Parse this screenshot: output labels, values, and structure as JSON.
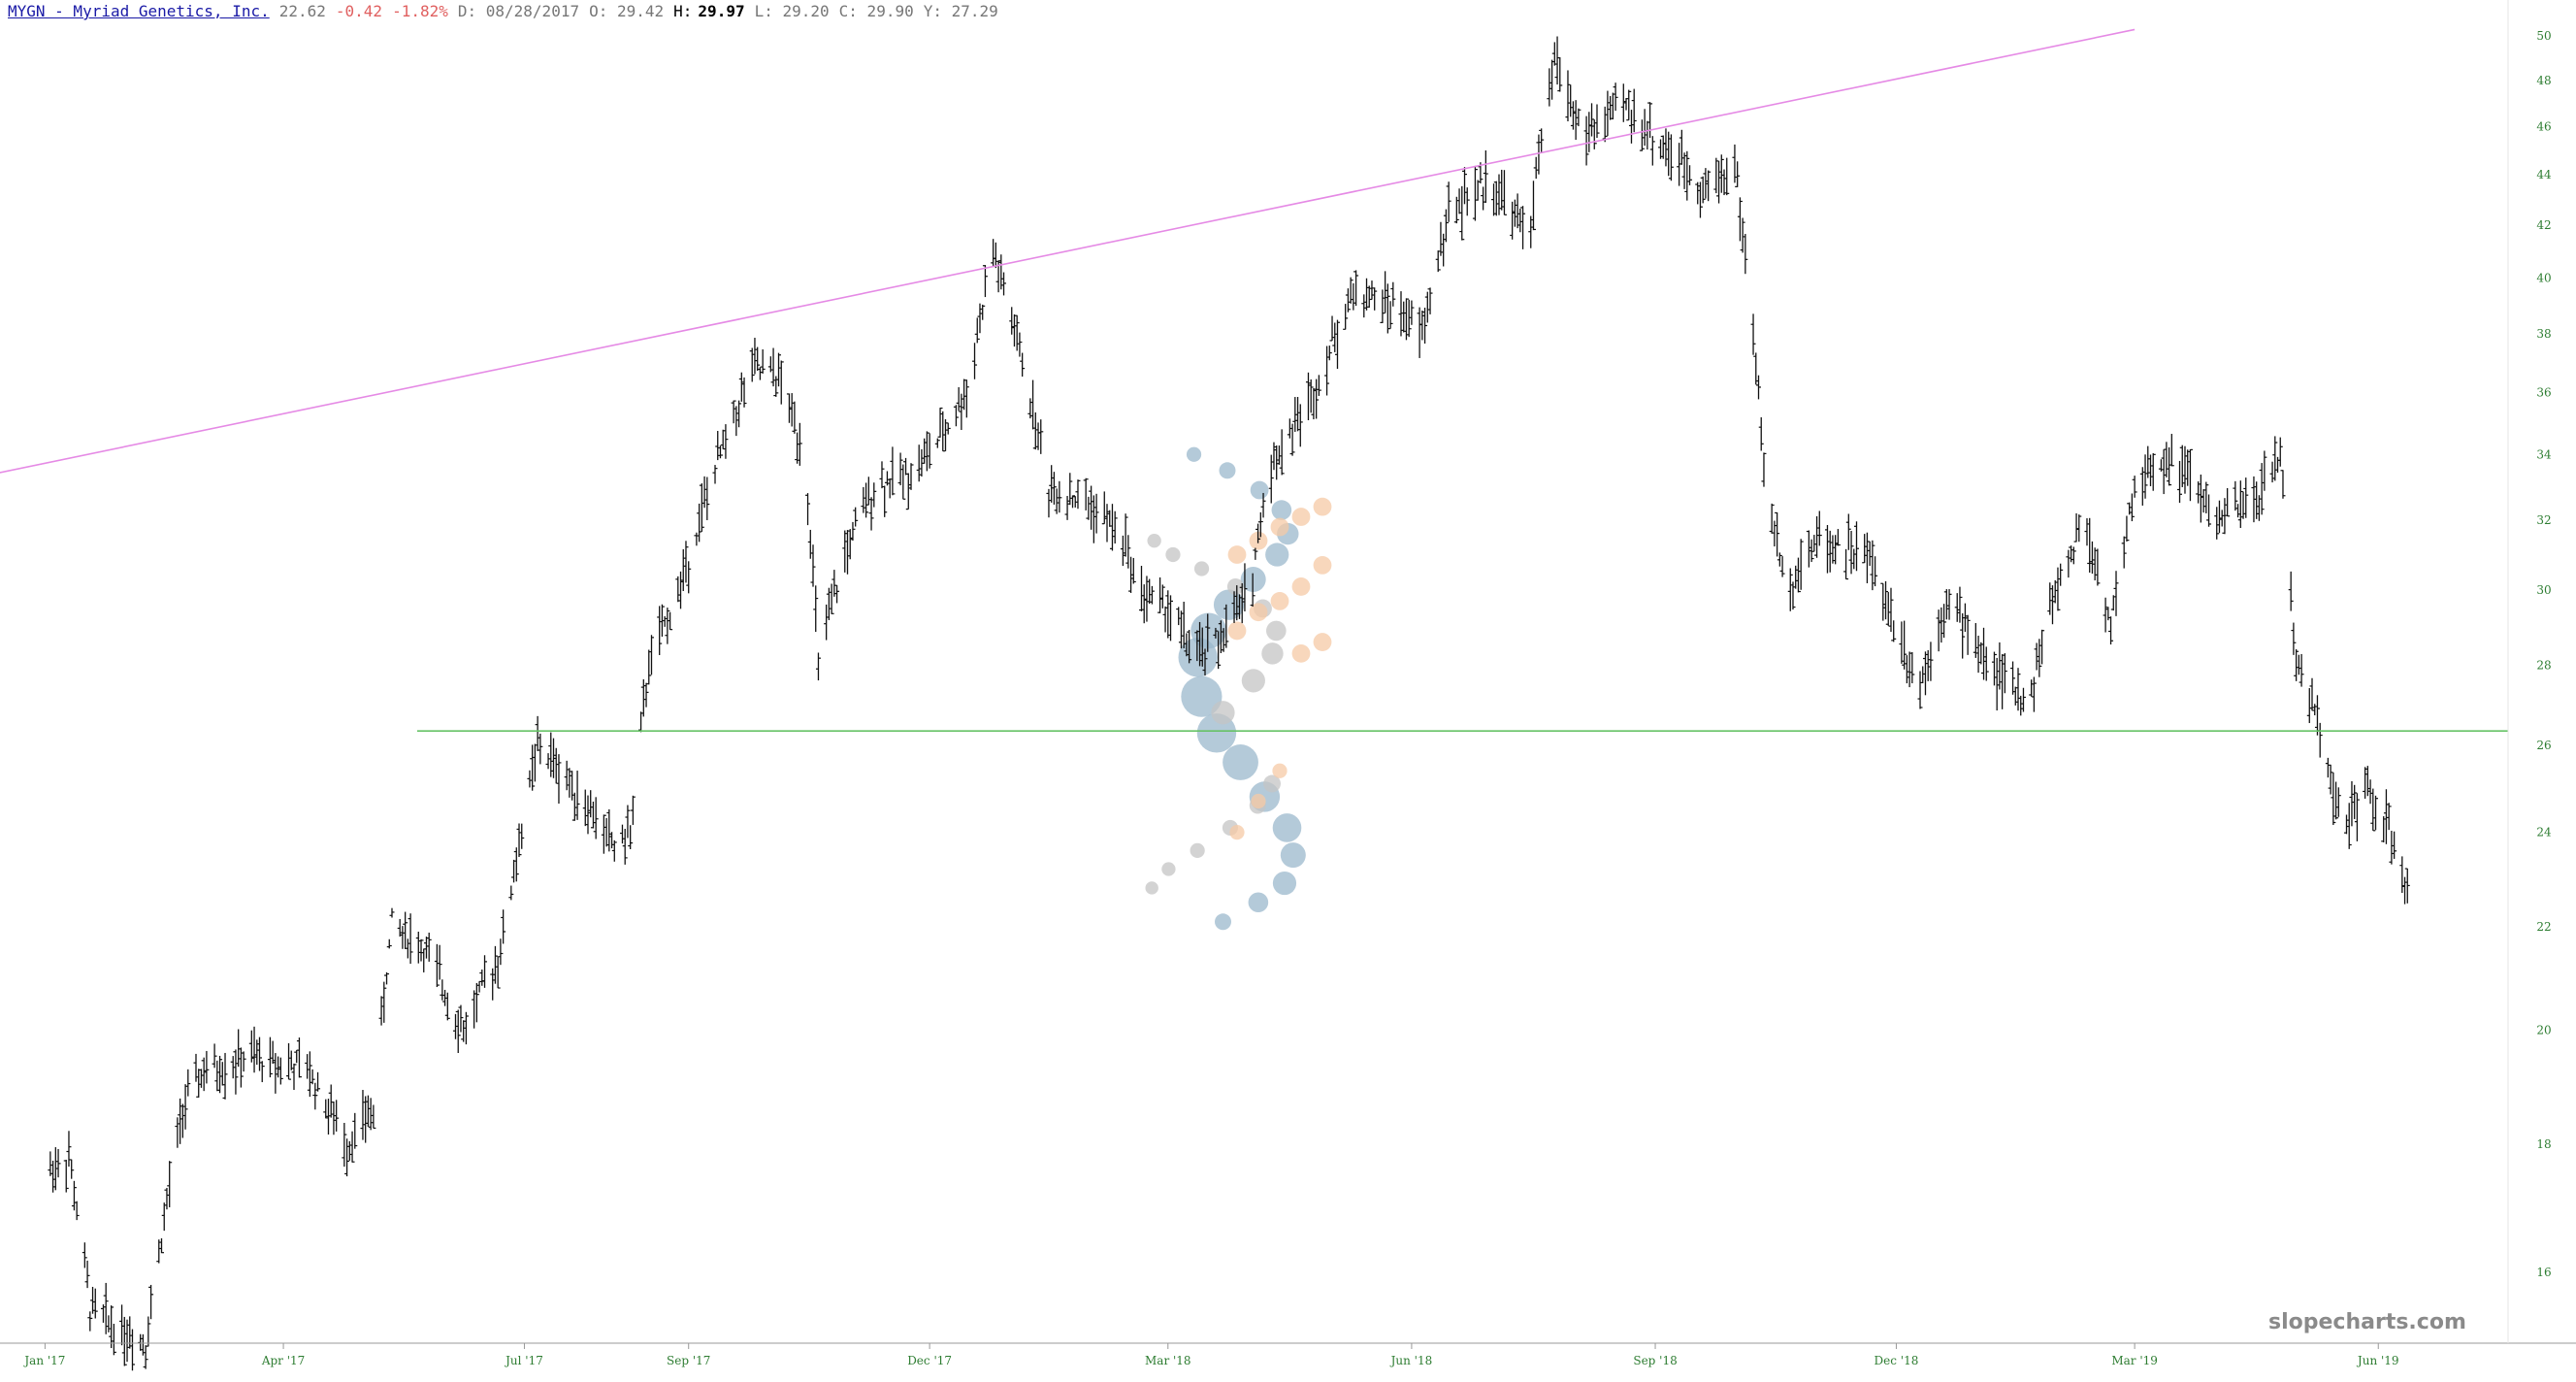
{
  "header": {
    "symbol": "MYGN - Myriad Genetics, Inc.",
    "last": "22.62",
    "change": "-0.42",
    "change_pct": "-1.82%",
    "date": "D: 08/28/2017",
    "open": "O: 29.42",
    "high_label": "H:",
    "high_value": "29.97",
    "low": "L: 29.20",
    "close": "C: 29.90",
    "prev": "Y: 27.29"
  },
  "watermark": "slopecharts.com",
  "colors": {
    "bars": "#111111",
    "trendline": "#e58ae5",
    "support": "#66c266",
    "axis_text": "#2e7d32",
    "bubble_blue": "#9bb8cc",
    "bubble_orange": "#f5c9a6",
    "bubble_gray": "#c4c4c4"
  },
  "chart_data": {
    "type": "ohlc",
    "y_scale": "log",
    "ylim": [
      15,
      51
    ],
    "ytick_labels": [
      "16",
      "18",
      "20",
      "22",
      "24",
      "26",
      "28",
      "30",
      "32",
      "34",
      "36",
      "38",
      "40",
      "42",
      "44",
      "46",
      "48",
      "50"
    ],
    "ytick_values": [
      16,
      18,
      20,
      22,
      24,
      26,
      28,
      30,
      32,
      34,
      36,
      38,
      40,
      42,
      44,
      46,
      48,
      50
    ],
    "xtick_labels": [
      "Jan '17",
      "Apr '17",
      "Jul '17",
      "Sep '17",
      "Dec '17",
      "Mar '18",
      "Jun '18",
      "Sep '18",
      "Dec '18",
      "Mar '19",
      "Jun '19"
    ],
    "trendline": {
      "from": [
        "2016-12",
        33.2
      ],
      "to": [
        "2019-03",
        50.3
      ]
    },
    "support_level": 26.35,
    "price_path": [
      [
        "2017-01-03",
        17.6
      ],
      [
        "2017-01-10",
        17.8
      ],
      [
        "2017-01-18",
        15.5
      ],
      [
        "2017-01-28",
        15.2
      ],
      [
        "2017-02-08",
        15.0
      ],
      [
        "2017-02-15",
        16.8
      ],
      [
        "2017-02-22",
        18.6
      ],
      [
        "2017-03-01",
        19.2
      ],
      [
        "2017-03-20",
        19.5
      ],
      [
        "2017-04-10",
        19.3
      ],
      [
        "2017-04-25",
        18.0
      ],
      [
        "2017-05-05",
        18.6
      ],
      [
        "2017-05-12",
        22.1
      ],
      [
        "2017-05-25",
        21.5
      ],
      [
        "2017-06-08",
        20.0
      ],
      [
        "2017-06-22",
        21.5
      ],
      [
        "2017-07-06",
        26.0
      ],
      [
        "2017-07-15",
        25.4
      ],
      [
        "2017-07-28",
        24.3
      ],
      [
        "2017-08-04",
        23.7
      ],
      [
        "2017-08-10",
        24.0
      ],
      [
        "2017-08-17",
        28.0
      ],
      [
        "2017-08-28",
        29.9
      ],
      [
        "2017-09-05",
        32.0
      ],
      [
        "2017-09-15",
        34.5
      ],
      [
        "2017-09-25",
        36.8
      ],
      [
        "2017-10-05",
        36.5
      ],
      [
        "2017-10-15",
        34.0
      ],
      [
        "2017-10-20",
        28.0
      ],
      [
        "2017-10-30",
        31.0
      ],
      [
        "2017-11-10",
        33.0
      ],
      [
        "2017-11-25",
        33.5
      ],
      [
        "2017-12-05",
        34.5
      ],
      [
        "2017-12-15",
        36.0
      ],
      [
        "2017-12-25",
        41.0
      ],
      [
        "2018-01-05",
        37.0
      ],
      [
        "2018-01-15",
        33.0
      ],
      [
        "2018-01-30",
        32.5
      ],
      [
        "2018-02-12",
        31.5
      ],
      [
        "2018-02-18",
        30.0
      ],
      [
        "2018-03-01",
        29.5
      ],
      [
        "2018-03-12",
        28.2
      ],
      [
        "2018-03-22",
        28.8
      ],
      [
        "2018-04-01",
        30.0
      ],
      [
        "2018-04-08",
        33.5
      ],
      [
        "2018-04-25",
        36.0
      ],
      [
        "2018-05-10",
        39.5
      ],
      [
        "2018-05-25",
        39.0
      ],
      [
        "2018-06-05",
        38.0
      ],
      [
        "2018-06-15",
        42.5
      ],
      [
        "2018-07-01",
        43.8
      ],
      [
        "2018-07-15",
        41.5
      ],
      [
        "2018-07-25",
        49.0
      ],
      [
        "2018-08-05",
        45.5
      ],
      [
        "2018-08-20",
        47.0
      ],
      [
        "2018-09-05",
        45.0
      ],
      [
        "2018-09-20",
        43.5
      ],
      [
        "2018-10-01",
        44.5
      ],
      [
        "2018-10-08",
        38.0
      ],
      [
        "2018-10-12",
        33.5
      ],
      [
        "2018-10-20",
        30.0
      ],
      [
        "2018-11-01",
        31.5
      ],
      [
        "2018-11-20",
        31.0
      ],
      [
        "2018-12-01",
        29.0
      ],
      [
        "2018-12-10",
        27.5
      ],
      [
        "2018-12-20",
        29.8
      ],
      [
        "2019-01-05",
        28.0
      ],
      [
        "2019-01-20",
        27.0
      ],
      [
        "2019-01-28",
        29.5
      ],
      [
        "2019-02-10",
        32.0
      ],
      [
        "2019-02-20",
        29.0
      ],
      [
        "2019-03-01",
        33.0
      ],
      [
        "2019-03-15",
        34.0
      ],
      [
        "2019-04-01",
        32.0
      ],
      [
        "2019-04-15",
        32.5
      ],
      [
        "2019-04-25",
        34.0
      ],
      [
        "2019-05-01",
        28.0
      ],
      [
        "2019-05-10",
        26.5
      ],
      [
        "2019-05-18",
        24.0
      ],
      [
        "2019-05-28",
        25.0
      ],
      [
        "2019-06-05",
        24.0
      ],
      [
        "2019-06-12",
        22.6
      ]
    ],
    "volume_profile": [
      {
        "series": "blue",
        "points": [
          [
            22.1,
            0.5
          ],
          [
            22.5,
            0.7
          ],
          [
            22.9,
            0.9
          ],
          [
            23.5,
            1.0
          ],
          [
            24.1,
            1.2
          ],
          [
            24.8,
            1.3
          ],
          [
            25.6,
            1.6
          ],
          [
            26.3,
            1.8
          ],
          [
            27.2,
            1.9
          ],
          [
            28.2,
            1.8
          ],
          [
            28.9,
            1.6
          ],
          [
            29.6,
            1.3
          ],
          [
            30.3,
            1.0
          ],
          [
            31.0,
            0.9
          ],
          [
            31.6,
            0.8
          ],
          [
            32.3,
            0.7
          ],
          [
            32.9,
            0.6
          ],
          [
            33.5,
            0.5
          ],
          [
            34.0,
            0.4
          ]
        ]
      },
      {
        "series": "gray",
        "points": [
          [
            26.8,
            0.9
          ],
          [
            27.6,
            0.9
          ],
          [
            28.3,
            0.8
          ],
          [
            28.9,
            0.7
          ],
          [
            29.5,
            0.6
          ],
          [
            30.1,
            0.5
          ],
          [
            30.6,
            0.4
          ],
          [
            31.0,
            0.4
          ],
          [
            31.4,
            0.35
          ],
          [
            22.8,
            0.3
          ],
          [
            23.2,
            0.35
          ],
          [
            23.6,
            0.4
          ],
          [
            24.1,
            0.45
          ],
          [
            24.6,
            0.5
          ],
          [
            25.1,
            0.55
          ]
        ]
      },
      {
        "series": "orange",
        "points": [
          [
            24.0,
            0.4
          ],
          [
            24.7,
            0.4
          ],
          [
            25.4,
            0.4
          ],
          [
            28.3,
            0.6
          ],
          [
            28.6,
            0.6
          ],
          [
            28.9,
            0.6
          ],
          [
            29.4,
            0.6
          ],
          [
            29.7,
            0.6
          ],
          [
            30.1,
            0.6
          ],
          [
            30.7,
            0.6
          ],
          [
            31.0,
            0.6
          ],
          [
            31.4,
            0.6
          ],
          [
            31.8,
            0.6
          ],
          [
            32.1,
            0.6
          ],
          [
            32.4,
            0.6
          ]
        ]
      }
    ]
  }
}
